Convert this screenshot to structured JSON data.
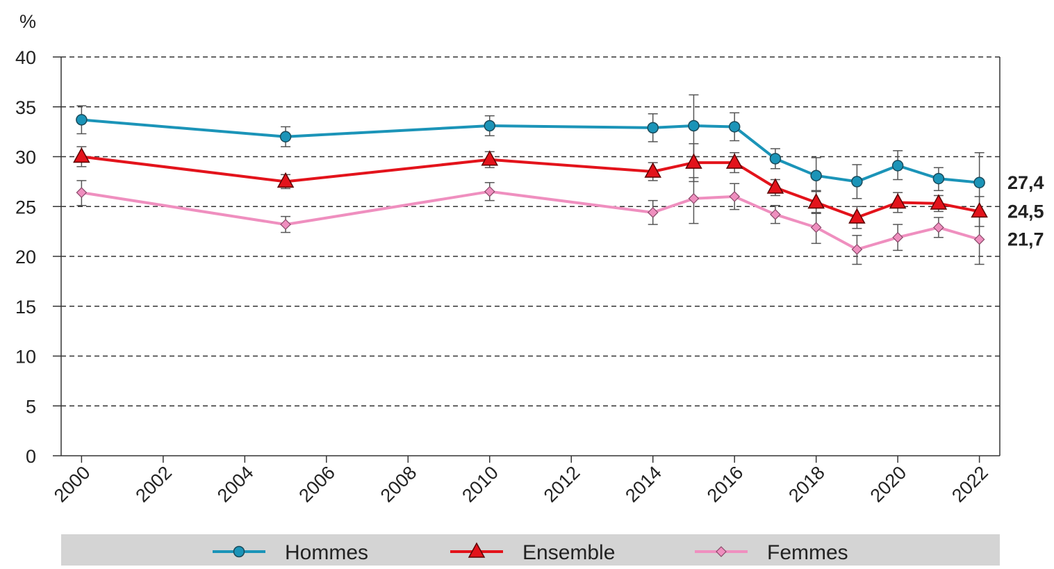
{
  "chart_data": {
    "type": "line",
    "ylabel": "%",
    "ylim": [
      0,
      40
    ],
    "yticks": [
      0,
      5,
      10,
      15,
      20,
      25,
      30,
      35,
      40
    ],
    "xlim": [
      1999.5,
      2022.5
    ],
    "xticks": [
      2000,
      2002,
      2004,
      2006,
      2008,
      2010,
      2012,
      2014,
      2016,
      2018,
      2020,
      2022
    ],
    "grid": "horizontal dashed",
    "legend_position": "bottom",
    "x": [
      2000,
      2005,
      2010,
      2014,
      2015,
      2016,
      2017,
      2018,
      2019,
      2020,
      2021,
      2022
    ],
    "series": [
      {
        "name": "Hommes",
        "color": "#1b94b8",
        "marker": "circle",
        "values": [
          33.7,
          32.0,
          33.1,
          32.9,
          33.1,
          33.0,
          29.8,
          28.1,
          27.5,
          29.1,
          27.8,
          27.4
        ],
        "error_low": [
          32.3,
          31.0,
          32.1,
          31.5,
          30.0,
          31.6,
          28.8,
          26.6,
          25.8,
          27.7,
          26.6,
          24.4
        ],
        "error_high": [
          35.1,
          33.0,
          34.1,
          34.3,
          36.2,
          34.4,
          30.8,
          29.9,
          29.2,
          30.6,
          28.9,
          30.4
        ],
        "end_label": "27,4"
      },
      {
        "name": "Ensemble",
        "color": "#e3131b",
        "marker": "triangle",
        "values": [
          30.0,
          27.5,
          29.7,
          28.5,
          29.4,
          29.4,
          26.9,
          25.4,
          23.9,
          25.4,
          25.3,
          24.5
        ],
        "error_low": [
          29.0,
          26.8,
          28.9,
          27.6,
          27.5,
          28.4,
          26.1,
          24.3,
          22.8,
          24.4,
          24.5,
          23.0
        ],
        "error_high": [
          31.0,
          28.2,
          30.5,
          29.4,
          31.3,
          30.4,
          27.7,
          26.5,
          25.0,
          26.4,
          26.1,
          26.0
        ],
        "end_label": "24,5"
      },
      {
        "name": "Femmes",
        "color": "#ef8fbf",
        "marker": "diamond",
        "values": [
          26.4,
          23.2,
          26.5,
          24.4,
          25.8,
          26.0,
          24.2,
          22.9,
          20.7,
          21.9,
          22.9,
          21.7
        ],
        "error_low": [
          25.1,
          22.4,
          25.6,
          23.2,
          23.3,
          24.7,
          23.3,
          21.3,
          19.2,
          20.6,
          21.9,
          19.2
        ],
        "error_high": [
          27.6,
          24.0,
          27.4,
          25.6,
          27.9,
          27.3,
          25.1,
          24.4,
          22.1,
          23.2,
          23.9,
          24.2
        ],
        "end_label": "21,7"
      }
    ]
  }
}
